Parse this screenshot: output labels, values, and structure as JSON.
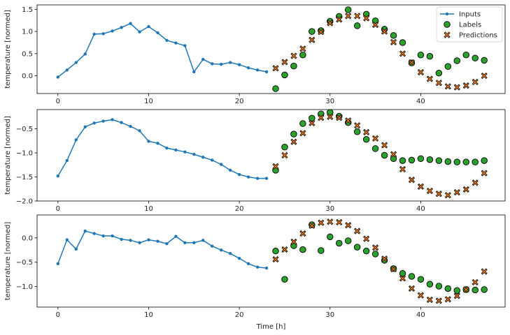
{
  "colors": {
    "inputs": "#1f77b4",
    "labels": "#2ca02c",
    "predictions": "#ff7f0e",
    "marker_edge": "#000000",
    "axes": "#000000"
  },
  "chart_data": [
    {
      "type": "line",
      "xlabel": "",
      "ylabel": "temperature [normed]",
      "xlim": [
        -2.3,
        49.3
      ],
      "ylim": [
        -0.4,
        1.6
      ],
      "xticks": [
        0,
        10,
        20,
        30,
        40
      ],
      "yticks": [
        0.0,
        0.5,
        1.0,
        1.5
      ],
      "ytick_labels": [
        "0.0",
        "0.5",
        "1.0",
        "1.5"
      ],
      "legend": {
        "position": "top-right",
        "entries": [
          "Inputs",
          "Labels",
          "Predictions"
        ]
      },
      "series": [
        {
          "name": "Inputs",
          "style": "line-dot",
          "x": [
            0,
            1,
            2,
            3,
            4,
            5,
            6,
            7,
            8,
            9,
            10,
            11,
            12,
            13,
            14,
            15,
            16,
            17,
            18,
            19,
            20,
            21,
            22,
            23
          ],
          "y": [
            -0.03,
            0.13,
            0.3,
            0.49,
            0.94,
            0.95,
            1.01,
            1.09,
            1.18,
            0.99,
            1.11,
            0.97,
            0.8,
            0.74,
            0.68,
            0.09,
            0.37,
            0.27,
            0.26,
            0.3,
            0.25,
            0.18,
            0.13,
            0.09
          ]
        },
        {
          "name": "Labels",
          "style": "circle",
          "x": [
            24,
            25,
            26,
            27,
            28,
            29,
            30,
            31,
            32,
            33,
            34,
            35,
            36,
            37,
            38,
            39,
            40,
            41,
            42,
            43,
            44,
            45,
            46,
            47
          ],
          "y": [
            -0.29,
            0.02,
            0.22,
            0.47,
            1.0,
            1.02,
            1.23,
            1.34,
            1.49,
            1.13,
            1.39,
            1.24,
            1.05,
            0.91,
            0.75,
            0.29,
            0.47,
            0.44,
            0.06,
            0.21,
            0.34,
            0.47,
            0.4,
            0.35
          ]
        },
        {
          "name": "Predictions",
          "style": "x",
          "x": [
            24,
            25,
            26,
            27,
            28,
            29,
            30,
            31,
            32,
            33,
            34,
            35,
            36,
            37,
            38,
            39,
            40,
            41,
            42,
            43,
            44,
            45,
            46,
            47
          ],
          "y": [
            0.17,
            0.31,
            0.45,
            0.61,
            0.81,
            0.99,
            1.19,
            1.27,
            1.35,
            1.35,
            1.3,
            1.15,
            1.0,
            0.76,
            0.5,
            0.3,
            0.08,
            -0.07,
            -0.16,
            -0.24,
            -0.26,
            -0.22,
            -0.14,
            0.0
          ]
        }
      ]
    },
    {
      "type": "line",
      "xlabel": "",
      "ylabel": "temperature [normed]",
      "xlim": [
        -2.3,
        49.3
      ],
      "ylim": [
        -2.0,
        -0.1
      ],
      "xticks": [
        0,
        10,
        20,
        30,
        40
      ],
      "yticks": [
        -2.0,
        -1.5,
        -1.0,
        -0.5
      ],
      "ytick_labels": [
        "−2.0",
        "−1.5",
        "−1.0",
        "−0.5"
      ],
      "series": [
        {
          "name": "Inputs",
          "style": "line-dot",
          "x": [
            0,
            1,
            2,
            3,
            4,
            5,
            6,
            7,
            8,
            9,
            10,
            11,
            12,
            13,
            14,
            15,
            16,
            17,
            18,
            19,
            20,
            21,
            22,
            23
          ],
          "y": [
            -1.48,
            -1.16,
            -0.73,
            -0.46,
            -0.38,
            -0.34,
            -0.31,
            -0.37,
            -0.45,
            -0.54,
            -0.76,
            -0.8,
            -0.9,
            -0.94,
            -0.98,
            -1.03,
            -1.09,
            -1.15,
            -1.24,
            -1.36,
            -1.45,
            -1.5,
            -1.53,
            -1.53
          ]
        },
        {
          "name": "Labels",
          "style": "circle",
          "x": [
            24,
            25,
            26,
            27,
            28,
            29,
            30,
            31,
            32,
            33,
            34,
            35,
            36,
            37,
            38,
            39,
            40,
            41,
            42,
            43,
            44,
            45,
            46,
            47
          ],
          "y": [
            -1.36,
            -0.88,
            -0.61,
            -0.39,
            -0.28,
            -0.19,
            -0.16,
            -0.24,
            -0.37,
            -0.56,
            -0.72,
            -0.91,
            -1.05,
            -1.12,
            -1.16,
            -1.15,
            -1.12,
            -1.14,
            -1.16,
            -1.18,
            -1.19,
            -1.19,
            -1.19,
            -1.16
          ]
        },
        {
          "name": "Predictions",
          "style": "x",
          "x": [
            24,
            25,
            26,
            27,
            28,
            29,
            30,
            31,
            32,
            33,
            34,
            35,
            36,
            37,
            38,
            39,
            40,
            41,
            42,
            43,
            44,
            45,
            46,
            47
          ],
          "y": [
            -1.28,
            -1.05,
            -0.77,
            -0.59,
            -0.38,
            -0.27,
            -0.25,
            -0.27,
            -0.33,
            -0.43,
            -0.57,
            -0.7,
            -0.84,
            -1.03,
            -1.34,
            -1.56,
            -1.7,
            -1.79,
            -1.85,
            -1.88,
            -1.82,
            -1.76,
            -1.62,
            -1.42
          ]
        }
      ]
    },
    {
      "type": "line",
      "xlabel": "Time [h]",
      "ylabel": "temperature [normed]",
      "xlim": [
        -2.3,
        49.3
      ],
      "ylim": [
        -1.42,
        0.47
      ],
      "xticks": [
        0,
        10,
        20,
        30,
        40
      ],
      "yticks": [
        -1.0,
        -0.5,
        0.0
      ],
      "ytick_labels": [
        "−1.0",
        "−0.5",
        "0.0"
      ],
      "series": [
        {
          "name": "Inputs",
          "style": "line-dot",
          "x": [
            0,
            1,
            2,
            3,
            4,
            5,
            6,
            7,
            8,
            9,
            10,
            11,
            12,
            13,
            14,
            15,
            16,
            17,
            18,
            19,
            20,
            21,
            22,
            23
          ],
          "y": [
            -0.53,
            -0.04,
            -0.23,
            0.14,
            0.09,
            0.04,
            0.04,
            -0.03,
            -0.05,
            -0.1,
            -0.04,
            -0.07,
            -0.12,
            0.03,
            -0.1,
            -0.1,
            -0.05,
            -0.17,
            -0.25,
            -0.32,
            -0.42,
            -0.53,
            -0.6,
            -0.62
          ]
        },
        {
          "name": "Labels",
          "style": "circle",
          "x": [
            24,
            25,
            26,
            27,
            28,
            29,
            30,
            31,
            32,
            33,
            34,
            35,
            36,
            37,
            38,
            39,
            40,
            41,
            42,
            43,
            44,
            45,
            46,
            47
          ],
          "y": [
            -0.27,
            -0.85,
            -0.16,
            -0.24,
            0.27,
            -0.26,
            0.02,
            -0.11,
            -0.06,
            -0.19,
            -0.27,
            -0.33,
            -0.46,
            -0.63,
            -0.73,
            -0.79,
            -0.85,
            -0.95,
            -0.99,
            -1.04,
            -1.08,
            -1.06,
            -1.07,
            -1.06
          ]
        },
        {
          "name": "Predictions",
          "style": "x",
          "x": [
            24,
            25,
            26,
            27,
            28,
            29,
            30,
            31,
            32,
            33,
            34,
            35,
            36,
            37,
            38,
            39,
            40,
            41,
            42,
            43,
            44,
            45,
            46,
            47
          ],
          "y": [
            -0.44,
            -0.24,
            -0.08,
            0.09,
            0.25,
            0.31,
            0.33,
            0.32,
            0.26,
            0.14,
            -0.02,
            -0.2,
            -0.43,
            -0.64,
            -0.83,
            -1.04,
            -1.18,
            -1.27,
            -1.29,
            -1.26,
            -1.19,
            -1.06,
            -0.91,
            -0.69
          ]
        }
      ]
    }
  ]
}
